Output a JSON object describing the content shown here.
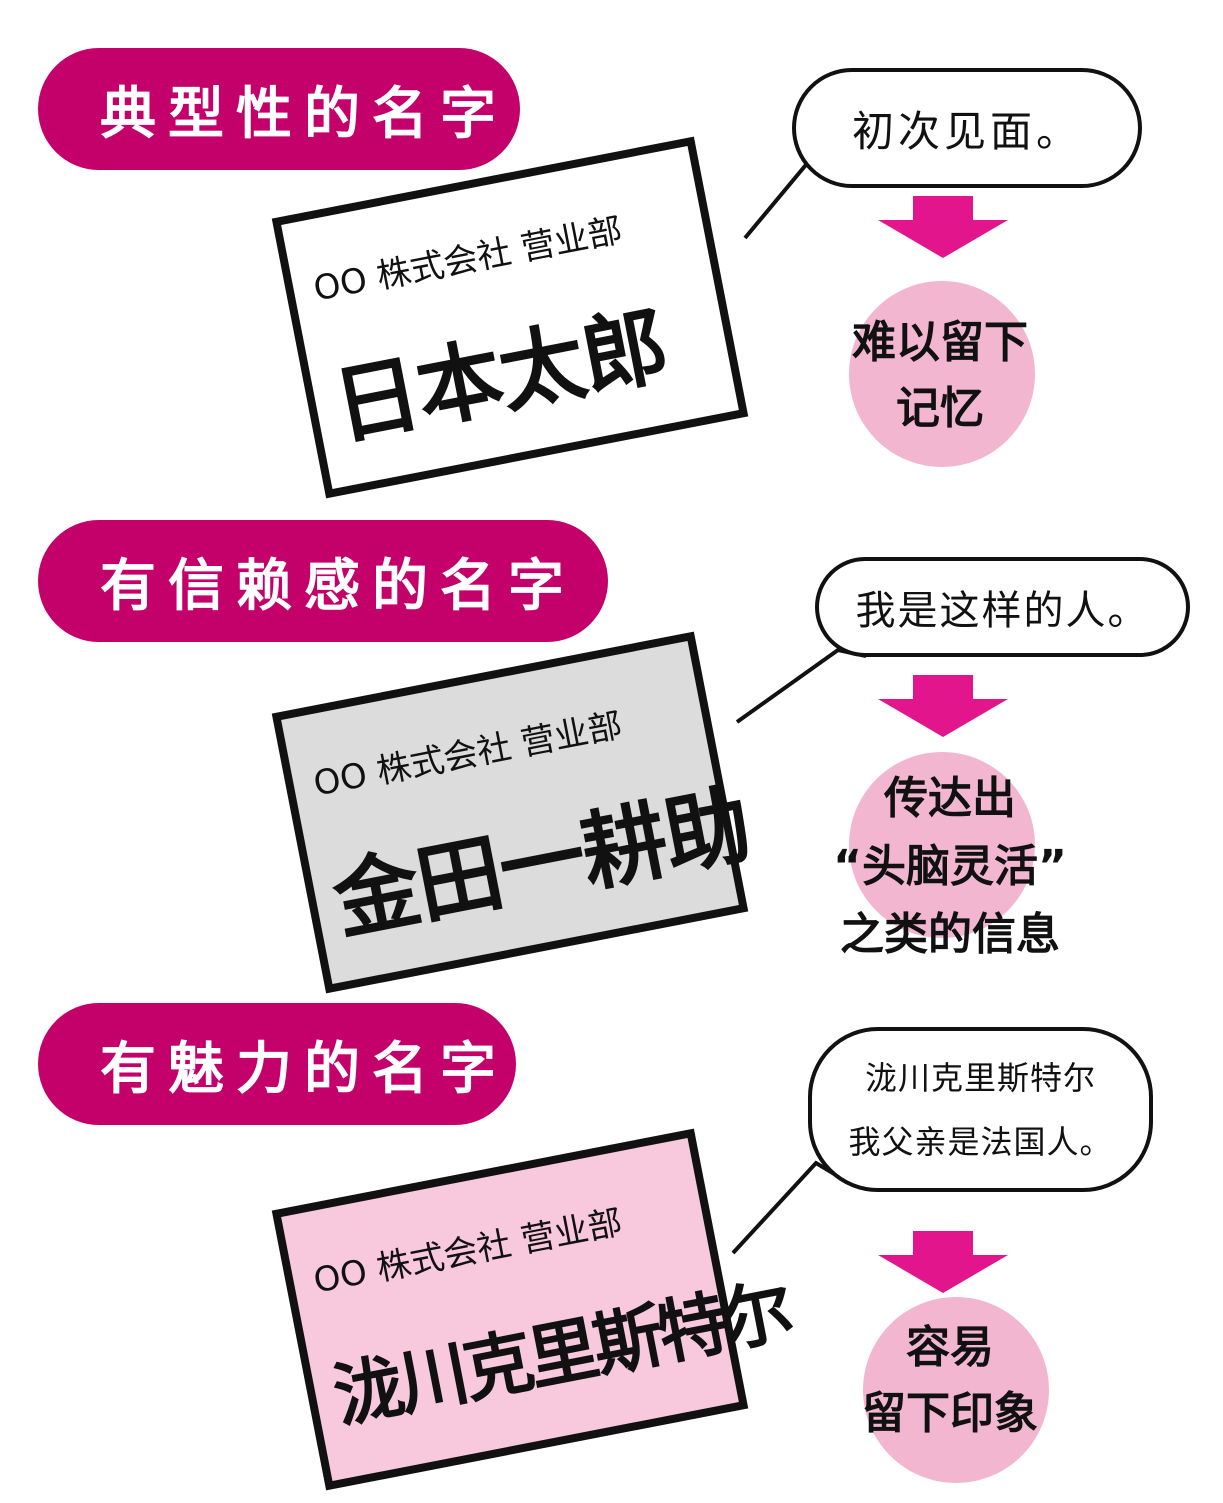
{
  "colors": {
    "tag_background": "#c4006a",
    "arrow": "#e3158c",
    "result_circle": "#f2b6d1",
    "card_typical": "#ffffff",
    "card_trust": "#dcdcdc",
    "card_charm": "#f8c8dd"
  },
  "sections": [
    {
      "tag": "典型性的名字",
      "card": {
        "company": "OO 株式会社 营业部",
        "name": "日本太郎"
      },
      "speech": [
        "初次见面。"
      ],
      "result": [
        "难以留下",
        "记忆"
      ]
    },
    {
      "tag": "有信赖感的名字",
      "card": {
        "company": "OO 株式会社 营业部",
        "name": "金田一耕助"
      },
      "speech": [
        "我是这样的人。"
      ],
      "result": [
        "传达出",
        "“头脑灵活”",
        "之类的信息"
      ]
    },
    {
      "tag": "有魅力的名字",
      "card": {
        "company": "OO 株式会社 营业部",
        "name": "泷川克里斯特尔"
      },
      "speech": [
        "泷川克里斯特尔",
        "我父亲是法国人。"
      ],
      "result": [
        "容易",
        "留下印象"
      ]
    }
  ]
}
